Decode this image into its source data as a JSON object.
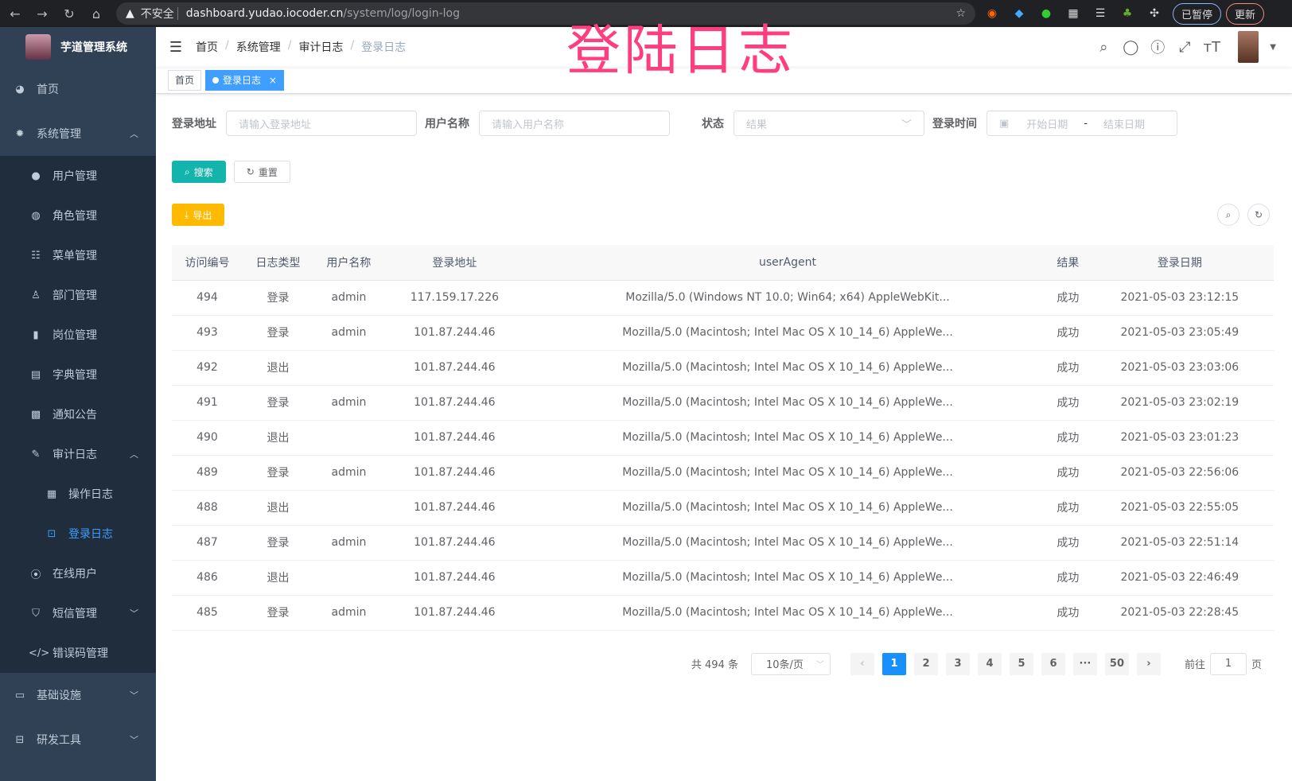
{
  "browser": {
    "security": "不安全",
    "url_host": "dashboard.yudao.iocoder.cn",
    "url_path": "/system/log/login-log",
    "profile_label": "已暂停",
    "update_label": "更新"
  },
  "overlay_title": "登陆日志",
  "sidebar": {
    "app_title": "芋道管理系统",
    "items": [
      {
        "label": "首页",
        "icon": "dashboard-icon"
      },
      {
        "label": "系统管理",
        "icon": "gear-icon",
        "expanded": true,
        "children": [
          {
            "label": "用户管理",
            "icon": "user-icon"
          },
          {
            "label": "角色管理",
            "icon": "peoples-icon"
          },
          {
            "label": "菜单管理",
            "icon": "tree-table-icon"
          },
          {
            "label": "部门管理",
            "icon": "tree-icon"
          },
          {
            "label": "岗位管理",
            "icon": "post-icon"
          },
          {
            "label": "字典管理",
            "icon": "dict-icon"
          },
          {
            "label": "通知公告",
            "icon": "message-icon"
          },
          {
            "label": "审计日志",
            "icon": "log-icon",
            "expanded": true,
            "children": [
              {
                "label": "操作日志",
                "icon": "form-icon"
              },
              {
                "label": "登录日志",
                "icon": "logininfor-icon",
                "active": true
              }
            ]
          },
          {
            "label": "在线用户",
            "icon": "online-icon"
          },
          {
            "label": "短信管理",
            "icon": "shield-icon"
          },
          {
            "label": "错误码管理",
            "icon": "code-icon"
          }
        ]
      },
      {
        "label": "基础设施",
        "icon": "monitor-icon"
      },
      {
        "label": "研发工具",
        "icon": "tool-icon"
      }
    ]
  },
  "breadcrumb": [
    "首页",
    "系统管理",
    "审计日志",
    "登录日志"
  ],
  "tags": [
    {
      "label": "首页"
    },
    {
      "label": "登录日志",
      "active": true
    }
  ],
  "filters": {
    "address_label": "登录地址",
    "address_placeholder": "请输入登录地址",
    "username_label": "用户名称",
    "username_placeholder": "请输入用户名称",
    "status_label": "状态",
    "status_placeholder": "结果",
    "time_label": "登录时间",
    "start_placeholder": "开始日期",
    "end_placeholder": "结束日期",
    "range_sep": "-"
  },
  "buttons": {
    "search": "搜索",
    "reset": "重置",
    "export": "导出"
  },
  "table": {
    "columns": [
      "访问编号",
      "日志类型",
      "用户名称",
      "登录地址",
      "userAgent",
      "结果",
      "登录日期"
    ],
    "rows": [
      [
        "494",
        "登录",
        "admin",
        "117.159.17.226",
        "Mozilla/5.0 (Windows NT 10.0; Win64; x64) AppleWebKit...",
        "成功",
        "2021-05-03 23:12:15"
      ],
      [
        "493",
        "登录",
        "admin",
        "101.87.244.46",
        "Mozilla/5.0 (Macintosh; Intel Mac OS X 10_14_6) AppleWe...",
        "成功",
        "2021-05-03 23:05:49"
      ],
      [
        "492",
        "退出",
        "",
        "101.87.244.46",
        "Mozilla/5.0 (Macintosh; Intel Mac OS X 10_14_6) AppleWe...",
        "成功",
        "2021-05-03 23:03:06"
      ],
      [
        "491",
        "登录",
        "admin",
        "101.87.244.46",
        "Mozilla/5.0 (Macintosh; Intel Mac OS X 10_14_6) AppleWe...",
        "成功",
        "2021-05-03 23:02:19"
      ],
      [
        "490",
        "退出",
        "",
        "101.87.244.46",
        "Mozilla/5.0 (Macintosh; Intel Mac OS X 10_14_6) AppleWe...",
        "成功",
        "2021-05-03 23:01:23"
      ],
      [
        "489",
        "登录",
        "admin",
        "101.87.244.46",
        "Mozilla/5.0 (Macintosh; Intel Mac OS X 10_14_6) AppleWe...",
        "成功",
        "2021-05-03 22:56:06"
      ],
      [
        "488",
        "退出",
        "",
        "101.87.244.46",
        "Mozilla/5.0 (Macintosh; Intel Mac OS X 10_14_6) AppleWe...",
        "成功",
        "2021-05-03 22:55:05"
      ],
      [
        "487",
        "登录",
        "admin",
        "101.87.244.46",
        "Mozilla/5.0 (Macintosh; Intel Mac OS X 10_14_6) AppleWe...",
        "成功",
        "2021-05-03 22:51:14"
      ],
      [
        "486",
        "退出",
        "",
        "101.87.244.46",
        "Mozilla/5.0 (Macintosh; Intel Mac OS X 10_14_6) AppleWe...",
        "成功",
        "2021-05-03 22:46:49"
      ],
      [
        "485",
        "登录",
        "admin",
        "101.87.244.46",
        "Mozilla/5.0 (Macintosh; Intel Mac OS X 10_14_6) AppleWe...",
        "成功",
        "2021-05-03 22:28:45"
      ]
    ]
  },
  "pagination": {
    "total": "共 494 条",
    "page_size": "10条/页",
    "pages": [
      "1",
      "2",
      "3",
      "4",
      "5",
      "6",
      "···",
      "50"
    ],
    "current": "1",
    "goto_label": "前往",
    "goto_value": "1",
    "page_suffix": "页"
  },
  "colors": {
    "sidebar_bg": "#304156",
    "active": "#409eff",
    "primary": "#13b4ab",
    "warning": "#ffba00",
    "overlay": "#ff3d7f"
  }
}
